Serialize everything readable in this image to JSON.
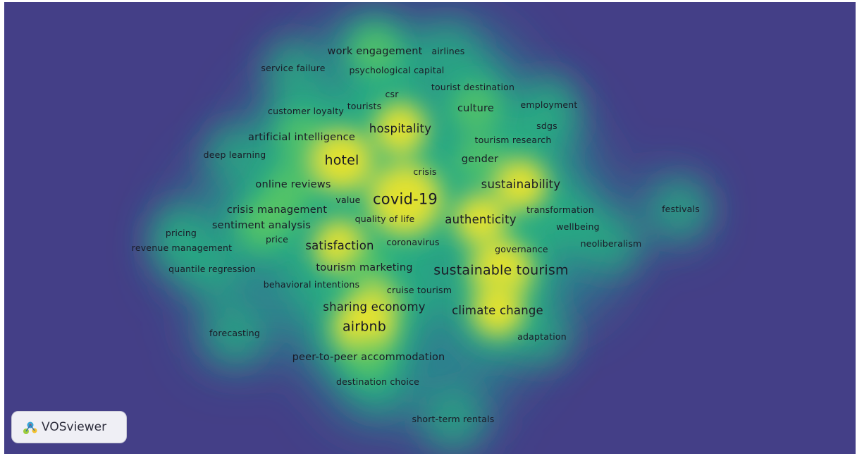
{
  "colors": {
    "background": "#443f87",
    "low": "#2d7f8e",
    "mid": "#27ad81",
    "high": "#5dc863",
    "peak": "#fde725",
    "label_text": "#1a1a26"
  },
  "keywords": [
    {
      "label": "work engagement",
      "weight": 2
    },
    {
      "label": "airlines",
      "weight": 1
    },
    {
      "label": "service failure",
      "weight": 1
    },
    {
      "label": "psychological capital",
      "weight": 1
    },
    {
      "label": "csr",
      "weight": 1
    },
    {
      "label": "tourist destination",
      "weight": 1
    },
    {
      "label": "customer loyalty",
      "weight": 1
    },
    {
      "label": "tourists",
      "weight": 1
    },
    {
      "label": "culture",
      "weight": 2
    },
    {
      "label": "employment",
      "weight": 1
    },
    {
      "label": "sdgs",
      "weight": 1
    },
    {
      "label": "hospitality",
      "weight": 3
    },
    {
      "label": "artificial intelligence",
      "weight": 2
    },
    {
      "label": "tourism research",
      "weight": 1
    },
    {
      "label": "deep learning",
      "weight": 1
    },
    {
      "label": "hotel",
      "weight": 4
    },
    {
      "label": "gender",
      "weight": 2
    },
    {
      "label": "crisis",
      "weight": 1
    },
    {
      "label": "online reviews",
      "weight": 2
    },
    {
      "label": "sustainability",
      "weight": 3
    },
    {
      "label": "covid-19",
      "weight": 5
    },
    {
      "label": "value",
      "weight": 1
    },
    {
      "label": "crisis management",
      "weight": 2
    },
    {
      "label": "transformation",
      "weight": 1
    },
    {
      "label": "festivals",
      "weight": 1
    },
    {
      "label": "quality of life",
      "weight": 1
    },
    {
      "label": "authenticity",
      "weight": 3
    },
    {
      "label": "sentiment analysis",
      "weight": 2
    },
    {
      "label": "wellbeing",
      "weight": 1
    },
    {
      "label": "pricing",
      "weight": 1
    },
    {
      "label": "price",
      "weight": 1
    },
    {
      "label": "satisfaction",
      "weight": 3
    },
    {
      "label": "coronavirus",
      "weight": 1
    },
    {
      "label": "neoliberalism",
      "weight": 1
    },
    {
      "label": "revenue management",
      "weight": 1
    },
    {
      "label": "governance",
      "weight": 1
    },
    {
      "label": "quantile regression",
      "weight": 1
    },
    {
      "label": "tourism marketing",
      "weight": 2
    },
    {
      "label": "sustainable tourism",
      "weight": 4
    },
    {
      "label": "behavioral intentions",
      "weight": 1
    },
    {
      "label": "cruise tourism",
      "weight": 1
    },
    {
      "label": "sharing economy",
      "weight": 3
    },
    {
      "label": "climate change",
      "weight": 3
    },
    {
      "label": "airbnb",
      "weight": 4
    },
    {
      "label": "forecasting",
      "weight": 1
    },
    {
      "label": "adaptation",
      "weight": 1
    },
    {
      "label": "peer-to-peer accommodation",
      "weight": 2
    },
    {
      "label": "destination choice",
      "weight": 1
    },
    {
      "label": "short-term rentals",
      "weight": 1
    }
  ],
  "badge": {
    "text": "VOSviewer",
    "logo_icon": "vosviewer-logo-icon"
  }
}
